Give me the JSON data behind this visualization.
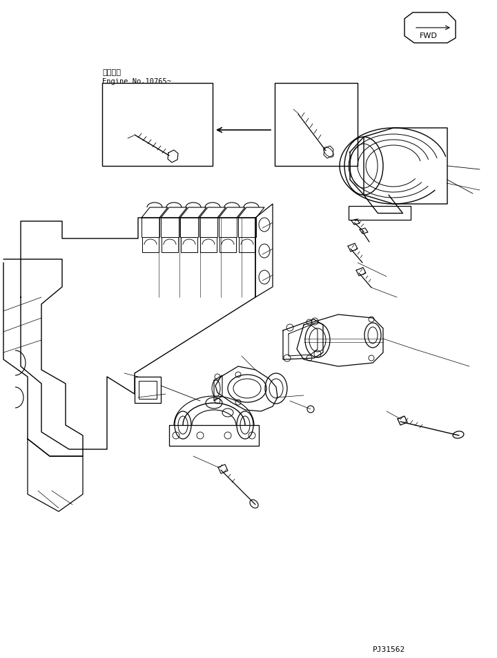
{
  "background_color": "#ffffff",
  "line_color": "#000000",
  "japanese_text": "適用号機",
  "engine_text": "Engine No.10765~",
  "part_number": "PJ31562",
  "figsize": [
    7.2,
    9.52
  ],
  "dpi": 100,
  "fwd_text": "FWD"
}
